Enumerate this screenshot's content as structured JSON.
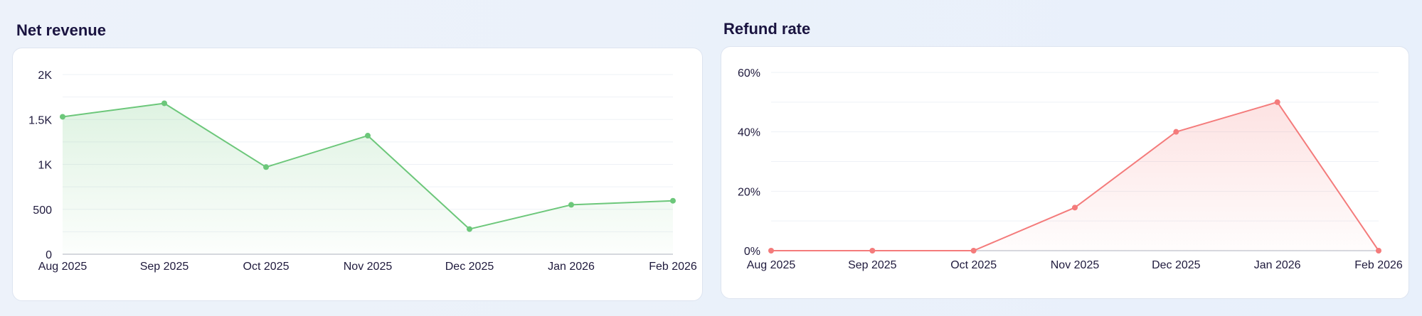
{
  "panels": [
    {
      "title": "Net revenue",
      "chart_data": {
        "type": "area",
        "title": "Net revenue",
        "categories": [
          "Aug 2025",
          "Sep 2025",
          "Oct 2025",
          "Nov 2025",
          "Dec 2025",
          "Jan 2026",
          "Feb 2026"
        ],
        "series": [
          {
            "values": [
              1530,
              1680,
              970,
              1320,
              280,
              550,
              595
            ]
          }
        ],
        "ylim": [
          0,
          2000
        ],
        "yticks": [
          0,
          500,
          1000,
          1500,
          2000
        ],
        "ytick_labels": [
          "0",
          "500",
          "1K",
          "1.5K",
          "2K"
        ],
        "grid": true,
        "color": "#6cc77a"
      }
    },
    {
      "title": "Refund rate",
      "chart_data": {
        "type": "area",
        "title": "Refund rate",
        "categories": [
          "Aug 2025",
          "Sep 2025",
          "Oct 2025",
          "Nov 2025",
          "Dec 2025",
          "Jan 2026",
          "Feb 2026"
        ],
        "series": [
          {
            "values": [
              0,
              0,
              0,
              14.5,
              40,
              50,
              0
            ]
          }
        ],
        "ylim": [
          0,
          60
        ],
        "yticks": [
          0,
          20,
          40,
          60
        ],
        "ytick_labels": [
          "0%",
          "20%",
          "40%",
          "60%"
        ],
        "grid": true,
        "color": "#f47b7b"
      }
    }
  ]
}
